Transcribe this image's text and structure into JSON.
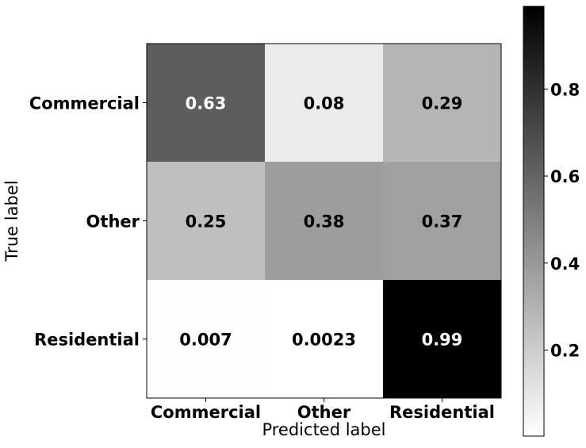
{
  "chart_data": {
    "type": "heatmap",
    "x_categories": [
      "Commercial",
      "Other",
      "Residential"
    ],
    "y_categories": [
      "Commercial",
      "Other",
      "Residential"
    ],
    "values": [
      [
        0.63,
        0.08,
        0.29
      ],
      [
        0.25,
        0.38,
        0.37
      ],
      [
        0.007,
        0.0023,
        0.99
      ]
    ],
    "cell_labels": [
      [
        "0.63",
        "0.08",
        "0.29"
      ],
      [
        "0.25",
        "0.38",
        "0.37"
      ],
      [
        "0.007",
        "0.0023",
        "0.99"
      ]
    ],
    "xlabel": "Predicted label",
    "ylabel": "True label",
    "colormap": "grayscale (white = low, black = high)",
    "colorbar": {
      "range": [
        0.0023,
        0.99
      ],
      "ticks": [
        0.2,
        0.4,
        0.6,
        0.8
      ],
      "tick_labels": [
        "0.2",
        "0.4",
        "0.6",
        "0.8"
      ],
      "placement": "right"
    }
  }
}
